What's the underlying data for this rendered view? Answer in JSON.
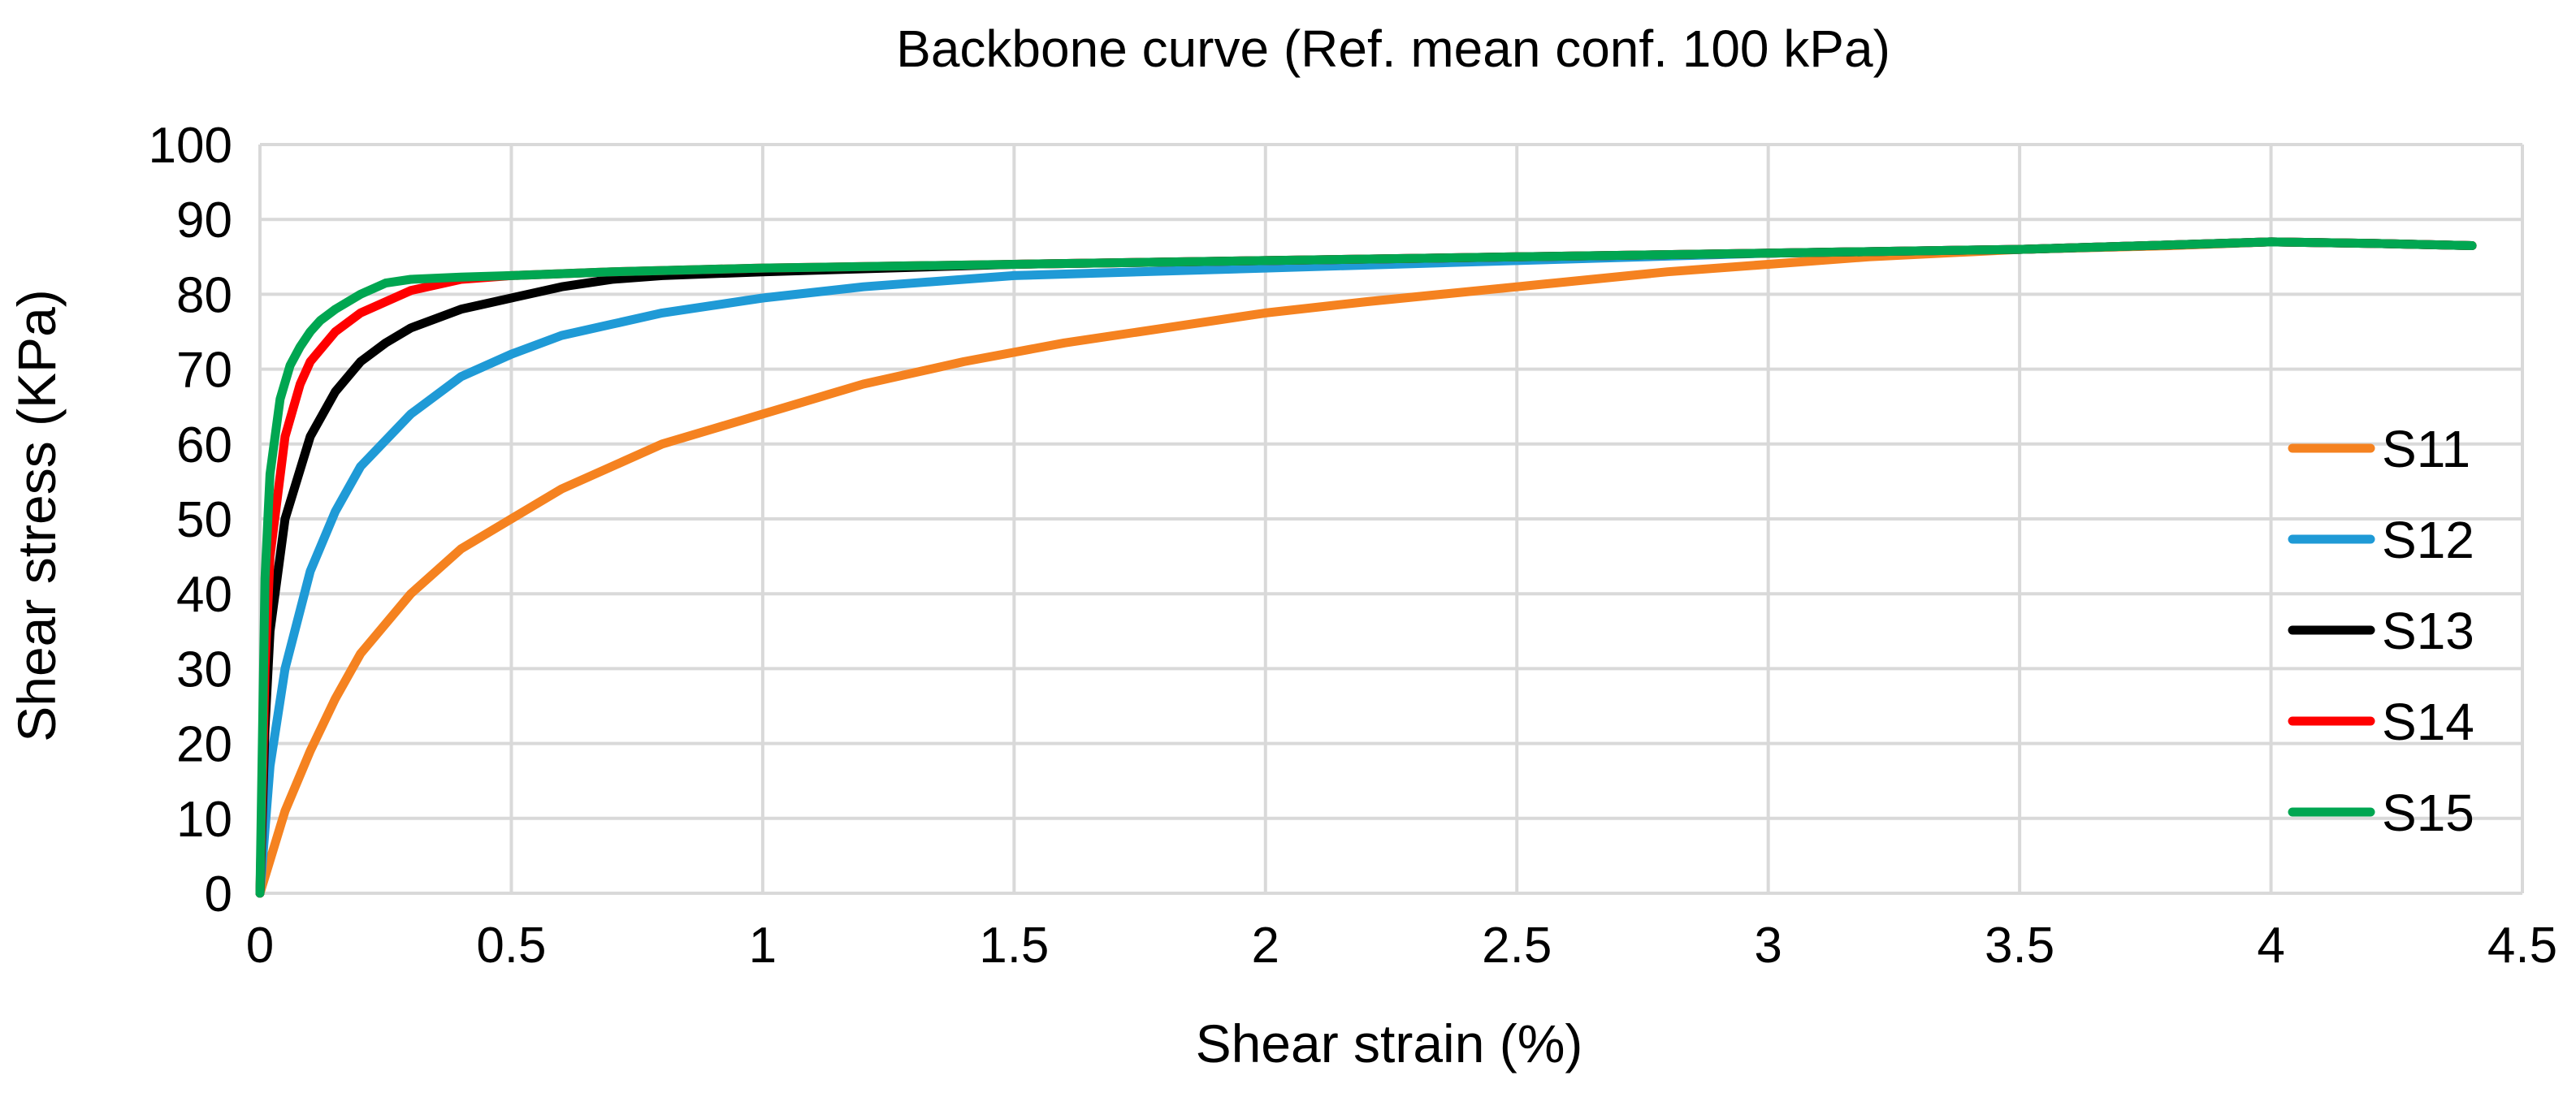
{
  "chart_data": {
    "type": "line",
    "title": "Backbone curve (Ref. mean conf. 100 kPa)",
    "xlabel": "Shear strain (%)",
    "ylabel": "Shear stress (KPa)",
    "xlim": [
      0,
      4.5
    ],
    "ylim": [
      0,
      100
    ],
    "xticks": [
      0,
      0.5,
      1,
      1.5,
      2,
      2.5,
      3,
      3.5,
      4,
      4.5
    ],
    "xtick_labels": [
      "0",
      "0.5",
      "1",
      "1.5",
      "2",
      "2.5",
      "3",
      "3.5",
      "4",
      "4.5"
    ],
    "yticks": [
      0,
      10,
      20,
      30,
      40,
      50,
      60,
      70,
      80,
      90,
      100
    ],
    "ytick_labels": [
      "0",
      "10",
      "20",
      "30",
      "40",
      "50",
      "60",
      "70",
      "80",
      "90",
      "100"
    ],
    "grid": true,
    "legend_position": "right",
    "series": [
      {
        "name": "S11",
        "color": "#f58220",
        "x": [
          0,
          0.05,
          0.1,
          0.15,
          0.2,
          0.3,
          0.4,
          0.5,
          0.6,
          0.7,
          0.8,
          0.9,
          1.0,
          1.2,
          1.4,
          1.6,
          1.8,
          2.0,
          2.2,
          2.5,
          2.8,
          3.0,
          3.2,
          3.5,
          3.8,
          4.0,
          4.2,
          4.4
        ],
        "y": [
          0,
          11,
          19,
          26,
          32,
          40,
          46,
          50,
          54,
          57,
          60,
          62,
          64,
          68,
          71,
          73.5,
          75.5,
          77.5,
          79,
          81,
          83,
          84,
          85,
          86,
          86.5,
          87,
          86.8,
          86.5
        ]
      },
      {
        "name": "S12",
        "color": "#1f9ad6",
        "x": [
          0,
          0.02,
          0.05,
          0.1,
          0.15,
          0.2,
          0.3,
          0.4,
          0.5,
          0.6,
          0.7,
          0.8,
          1.0,
          1.2,
          1.5,
          2.0,
          2.5,
          3.0,
          3.5,
          4.0,
          4.2,
          4.4
        ],
        "y": [
          0,
          17,
          30,
          43,
          51,
          57,
          64,
          69,
          72,
          74.5,
          76,
          77.5,
          79.5,
          81,
          82.5,
          83.5,
          84.5,
          85.5,
          86,
          87,
          86.8,
          86.5
        ]
      },
      {
        "name": "S13",
        "color": "#000000",
        "x": [
          0,
          0.01,
          0.02,
          0.05,
          0.1,
          0.15,
          0.2,
          0.25,
          0.3,
          0.4,
          0.5,
          0.6,
          0.7,
          0.8,
          1.0,
          1.5,
          2.0,
          2.5,
          3.0,
          3.5,
          4.0,
          4.2,
          4.4
        ],
        "y": [
          0,
          22,
          35,
          50,
          61,
          67,
          71,
          73.5,
          75.5,
          78,
          79.5,
          81,
          82,
          82.5,
          83,
          84,
          84.5,
          85,
          85.5,
          86,
          87,
          86.8,
          86.5
        ]
      },
      {
        "name": "S14",
        "color": "#ff0000",
        "x": [
          0,
          0.01,
          0.02,
          0.05,
          0.08,
          0.1,
          0.15,
          0.2,
          0.25,
          0.3,
          0.4,
          0.5,
          0.7,
          1.0,
          1.5,
          2.0,
          2.5,
          3.0,
          3.5,
          4.0,
          4.2,
          4.4
        ],
        "y": [
          0,
          30,
          45,
          61,
          68,
          71,
          75,
          77.5,
          79,
          80.5,
          82,
          82.5,
          83,
          83.5,
          84,
          84.5,
          85,
          85.5,
          86,
          87,
          86.8,
          86.5
        ]
      },
      {
        "name": "S15",
        "color": "#00a651",
        "x": [
          0,
          0.01,
          0.02,
          0.04,
          0.06,
          0.08,
          0.1,
          0.12,
          0.15,
          0.2,
          0.25,
          0.3,
          0.4,
          0.5,
          0.7,
          1.0,
          1.5,
          2.0,
          2.5,
          3.0,
          3.5,
          4.0,
          4.2,
          4.4
        ],
        "y": [
          0,
          42,
          56,
          66,
          70.5,
          73,
          75,
          76.5,
          78,
          80,
          81.5,
          82,
          82.3,
          82.5,
          83,
          83.5,
          84,
          84.5,
          85,
          85.5,
          86,
          87,
          86.8,
          86.5
        ]
      }
    ]
  }
}
